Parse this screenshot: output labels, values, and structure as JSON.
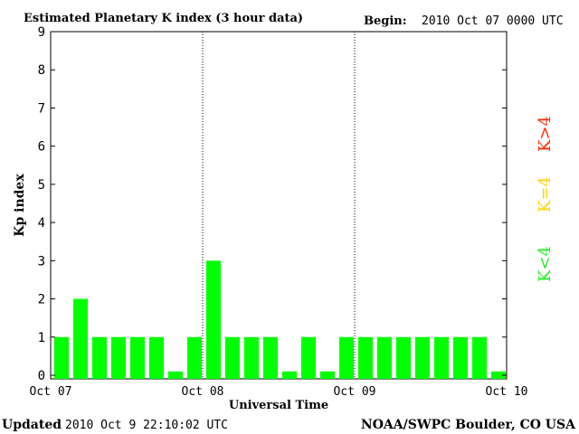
{
  "header": {
    "title": "Estimated Planetary K index (3 hour data)",
    "begin_label": "Begin:",
    "begin_value": "2010 Oct 07 0000 UTC"
  },
  "footer": {
    "updated_label": "Updated",
    "updated_value": "2010 Oct  9 22:10:02 UTC",
    "source": "NOAA/SWPC Boulder, CO USA"
  },
  "legend": [
    {
      "label": "K>4",
      "color": "#ff2a00"
    },
    {
      "label": "K=4",
      "color": "#ffd200"
    },
    {
      "label": "K<4",
      "color": "#22ee22"
    }
  ],
  "chart_data": {
    "type": "bar",
    "title": "Estimated Planetary K index (3 hour data)",
    "xlabel": "Universal Time",
    "ylabel": "Kp index",
    "ylim": [
      0,
      9
    ],
    "yticks": [
      "0",
      "1",
      "2",
      "3",
      "4",
      "5",
      "6",
      "7",
      "8",
      "9"
    ],
    "xticks": [
      "Oct 07",
      "Oct 08",
      "Oct 09",
      "Oct 10"
    ],
    "day_separators": [
      "Oct 08",
      "Oct 09"
    ],
    "bar_color": "#00ff00",
    "values": [
      1,
      2,
      1,
      1,
      1,
      1,
      0.1,
      1,
      3,
      1,
      1,
      1,
      0.1,
      1,
      0.1,
      1,
      1,
      1,
      1,
      1,
      1,
      1,
      1,
      0.1
    ]
  }
}
